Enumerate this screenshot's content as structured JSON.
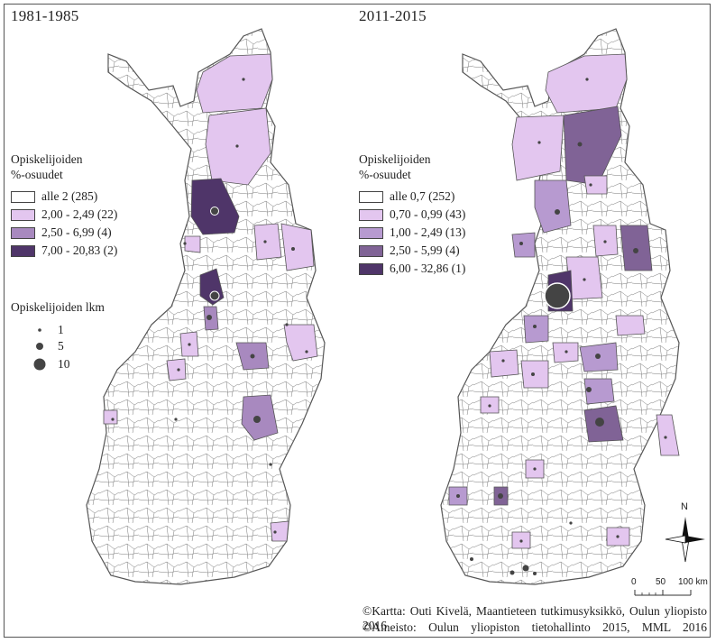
{
  "left_map": {
    "period": "1981-1985",
    "legend_title_1": "Opiskelijoiden",
    "legend_title_2": "%-osuudet",
    "classes": [
      {
        "label": "alle 2 (285)",
        "color": "#ffffff"
      },
      {
        "label": "2,00 - 2,49 (22)",
        "color": "#e3c6ef"
      },
      {
        "label": "2,50 - 6,99 (4)",
        "color": "#a889bf"
      },
      {
        "label": "7,00 - 20,83 (2)",
        "color": "#4f3569"
      }
    ],
    "count_legend": {
      "title": "Opiskelijoiden lkm",
      "items": [
        {
          "value": "1",
          "size": 1
        },
        {
          "value": "5",
          "size": 5
        },
        {
          "value": "10",
          "size": 10
        }
      ]
    }
  },
  "right_map": {
    "period": "2011-2015",
    "legend_title_1": "Opiskelijoiden",
    "legend_title_2": "%-osuudet",
    "classes": [
      {
        "label": "alle 0,7 (252)",
        "color": "#ffffff"
      },
      {
        "label": "0,70 - 0,99 (43)",
        "color": "#e3c6ef"
      },
      {
        "label": "1,00 - 2,49 (13)",
        "color": "#b79ad0"
      },
      {
        "label": "2,50 - 5,99 (4)",
        "color": "#806396"
      },
      {
        "label": "6,00 - 32,86 (1)",
        "color": "#4f3569"
      }
    ]
  },
  "north_arrow": {
    "label": "N"
  },
  "scale_bar": {
    "ticks": [
      "0",
      "50",
      "100 km"
    ]
  },
  "credits": {
    "line1": "©Kartta: Outi Kivelä, Maantieteen tutkimusyksikkö, Oulun yliopisto 2016",
    "line2": "©Aineisto: Oulun yliopiston tietohallinto 2015, MML 2016"
  },
  "colors": {
    "outline": "#555555",
    "dot": "#444444"
  }
}
